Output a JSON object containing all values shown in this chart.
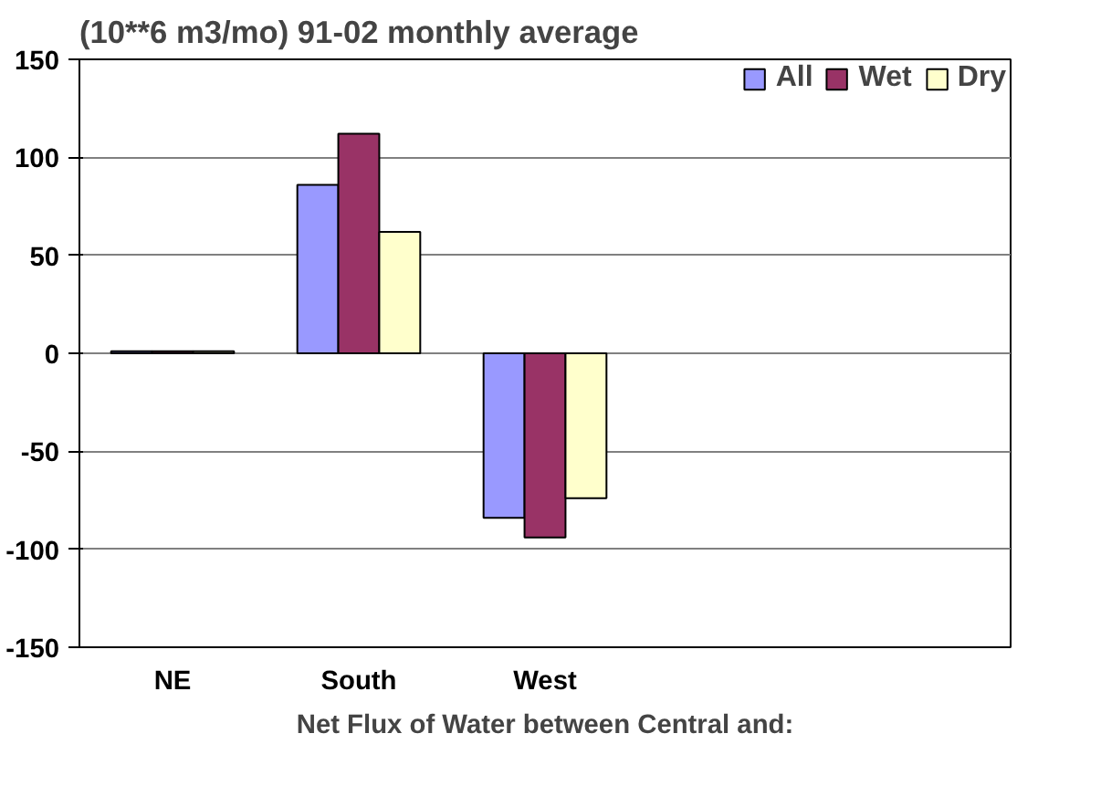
{
  "chart_data": {
    "type": "bar",
    "title": "(10**6 m3/mo)  91-02 monthly average",
    "xlabel": "Net Flux of Water between Central and:",
    "categories": [
      "NE",
      "South",
      "West",
      null,
      null
    ],
    "series": [
      {
        "name": "All",
        "color": "#9999ff",
        "values": [
          1,
          86,
          -84,
          null,
          null
        ]
      },
      {
        "name": "Wet",
        "color": "#993366",
        "values": [
          1,
          112,
          -94,
          null,
          null
        ]
      },
      {
        "name": "Dry",
        "color": "#ffffcc",
        "values": [
          1,
          62,
          -74,
          null,
          null
        ]
      }
    ],
    "ylim": [
      -150,
      150
    ],
    "yticks": [
      -150,
      -100,
      -50,
      0,
      50,
      100,
      150
    ],
    "grid": "y",
    "legend": "top right"
  }
}
